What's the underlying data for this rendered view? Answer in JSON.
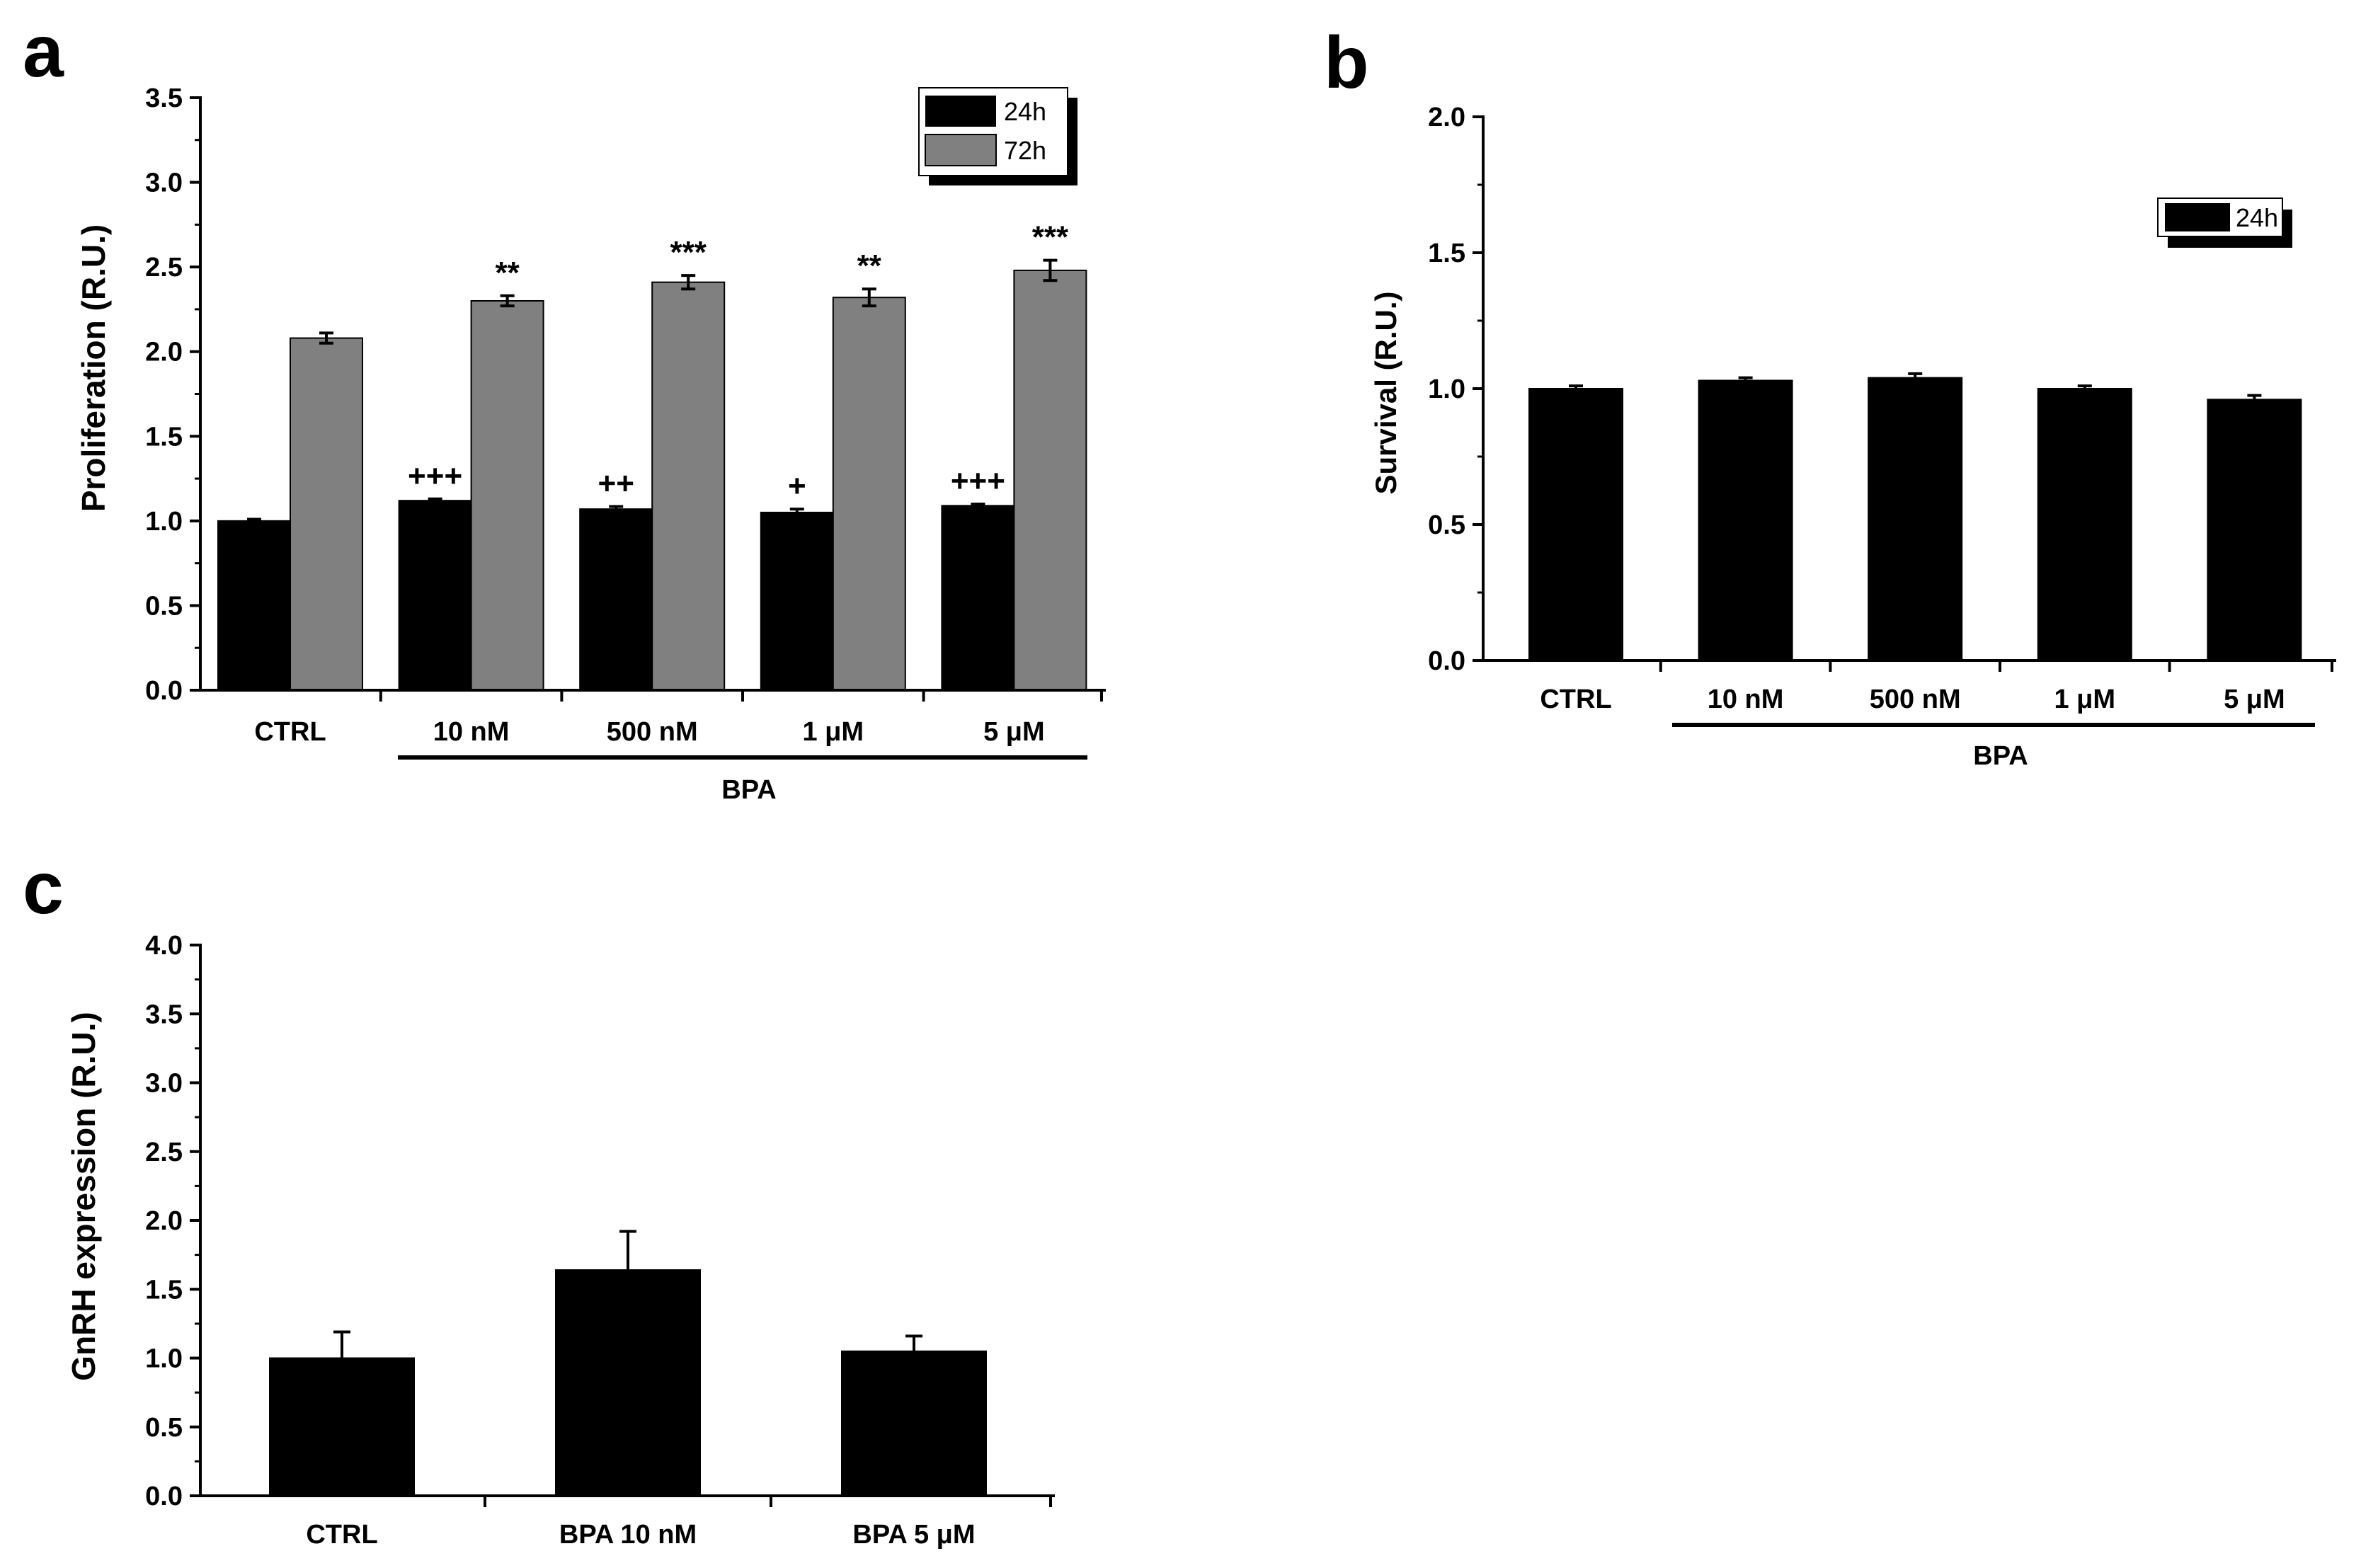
{
  "colors": {
    "series_24h": "#000000",
    "series_72h": "#808080",
    "axis": "#000000",
    "background": "#ffffff"
  },
  "chart_data": [
    {
      "panel": "a",
      "type": "bar",
      "ylabel": "Proliferation (R.U.)",
      "xlabel": "",
      "ylim": [
        0,
        3.5
      ],
      "yticks": [
        "0.0",
        "0.5",
        "1.0",
        "1.5",
        "2.0",
        "2.5",
        "3.0",
        "3.5"
      ],
      "categories": [
        "CTRL",
        "10 nM",
        "500 nM",
        "1 μM",
        "5 μM"
      ],
      "group_label": "BPA",
      "legend": [
        "24h",
        "72h"
      ],
      "series": [
        {
          "name": "24h",
          "values": [
            1.0,
            1.12,
            1.07,
            1.05,
            1.09
          ],
          "errors": [
            0.01,
            0.01,
            0.015,
            0.02,
            0.01
          ],
          "annotations": [
            "",
            "+++",
            "++",
            "+",
            "+++"
          ]
        },
        {
          "name": "72h",
          "values": [
            2.08,
            2.3,
            2.41,
            2.32,
            2.48
          ],
          "errors": [
            0.03,
            0.03,
            0.04,
            0.05,
            0.06
          ],
          "annotations": [
            "",
            "**",
            "***",
            "**",
            "***"
          ]
        }
      ]
    },
    {
      "panel": "b",
      "type": "bar",
      "ylabel": "Survival (R.U.)",
      "xlabel": "",
      "ylim": [
        0,
        2.0
      ],
      "yticks": [
        "0.0",
        "0.5",
        "1.0",
        "1.5",
        "2.0"
      ],
      "categories": [
        "CTRL",
        "10 nM",
        "500 nM",
        "1 μM",
        "5 μM"
      ],
      "group_label": "BPA",
      "legend": [
        "24h"
      ],
      "series": [
        {
          "name": "24h",
          "values": [
            1.0,
            1.03,
            1.04,
            1.0,
            0.96
          ],
          "errors": [
            0.01,
            0.01,
            0.015,
            0.01,
            0.015
          ]
        }
      ]
    },
    {
      "panel": "c",
      "type": "bar",
      "ylabel": "GnRH expression (R.U.)",
      "xlabel": "",
      "ylim": [
        0,
        4.0
      ],
      "yticks": [
        "0.0",
        "0.5",
        "1.0",
        "1.5",
        "2.0",
        "2.5",
        "3.0",
        "3.5",
        "4.0"
      ],
      "categories": [
        "CTRL",
        "BPA 10 nM",
        "BPA 5 μM"
      ],
      "series": [
        {
          "name": "GnRH",
          "values": [
            1.0,
            1.64,
            1.05
          ],
          "errors": [
            0.19,
            0.28,
            0.11
          ]
        }
      ]
    }
  ]
}
